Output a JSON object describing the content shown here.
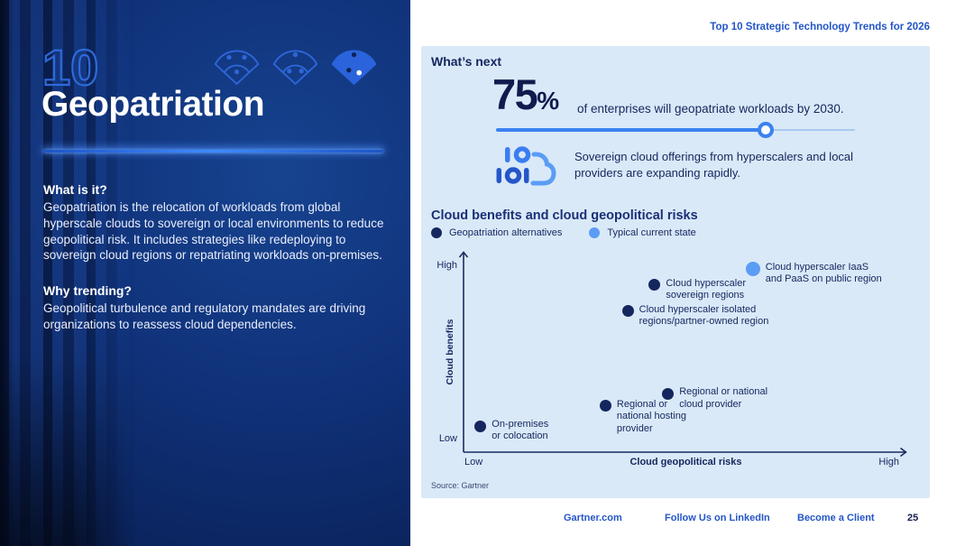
{
  "document": {
    "header_label": "Top 10 Strategic Technology Trends for 2026"
  },
  "left_panel": {
    "number": "10",
    "icons": [
      "fan-dots-icon-outline",
      "fan-dots-icon-outline",
      "fan-dots-icon-filled"
    ],
    "title": "Geopatriation",
    "what_heading": "What is it?",
    "what_text": "Geopatriation is the relocation of workloads from global hyperscale clouds to sovereign or local environments to reduce geopolitical risk. It includes strategies like redeploying to sovereign cloud regions or repatriating workloads on-premises.",
    "why_heading": "Why trending?",
    "why_text": "Geopolitical turbulence and regulatory mandates are driving organizations to reassess cloud dependencies."
  },
  "whats_next": {
    "heading": "What’s next",
    "stat_value": "75",
    "stat_unit": "%",
    "stat_text": "of enterprises will geopatriate workloads by 2030.",
    "slider_percent": 75,
    "callout_icon": "binary-cloud-icon",
    "callout_text": "Sovereign cloud offerings from hyperscalers and local providers are expanding rapidly."
  },
  "chart_data": {
    "type": "scatter",
    "title": "Cloud benefits and cloud geopolitical risks",
    "xlabel": "Cloud geopolitical risks",
    "ylabel": "Cloud benefits",
    "x_axis_ticks": [
      "Low",
      "High"
    ],
    "y_axis_ticks": [
      "Low",
      "High"
    ],
    "x_range": [
      0,
      1
    ],
    "y_range": [
      0,
      1
    ],
    "grid": false,
    "legend_position": "top-left",
    "legend": [
      {
        "name": "Geopatriation alternatives",
        "color": "#15265e"
      },
      {
        "name": "Typical current state",
        "color": "#5b9cf5"
      }
    ],
    "points": [
      {
        "id": "onprem",
        "label": "On-premises or colocation",
        "label_lines": [
          "On-premises",
          "or colocation"
        ],
        "series": "Geopatriation alternatives",
        "x": 0.04,
        "y": 0.13
      },
      {
        "id": "hosting",
        "label": "Regional or national hosting provider",
        "label_lines": [
          "Regional or",
          "national hosting",
          "provider"
        ],
        "series": "Geopatriation alternatives",
        "x": 0.32,
        "y": 0.23
      },
      {
        "id": "regional-cloud",
        "label": "Regional or national cloud provider",
        "label_lines": [
          "Regional or national",
          "cloud provider"
        ],
        "series": "Geopatriation alternatives",
        "x": 0.46,
        "y": 0.29
      },
      {
        "id": "isolated",
        "label": "Cloud hyperscaler isolated regions/partner-owned region",
        "label_lines": [
          "Cloud hyperscaler isolated",
          "regions/partner-owned region"
        ],
        "series": "Geopatriation alternatives",
        "x": 0.37,
        "y": 0.7
      },
      {
        "id": "sovereign",
        "label": "Cloud hyperscaler sovereign regions",
        "label_lines": [
          "Cloud hyperscaler",
          "sovereign regions"
        ],
        "series": "Geopatriation alternatives",
        "x": 0.43,
        "y": 0.83
      },
      {
        "id": "iaas-public",
        "label": "Cloud hyperscaler IaaS and PaaS on public region",
        "label_lines": [
          "Cloud hyperscaler IaaS",
          "and PaaS on public region"
        ],
        "series": "Typical current state",
        "x": 0.65,
        "y": 0.91
      }
    ],
    "source": "Source: Gartner"
  },
  "footer": {
    "links": [
      "Gartner.com",
      "Follow Us on LinkedIn",
      "Become a Client"
    ],
    "page_number": "25"
  },
  "colors": {
    "panel_navy": "#0d2a68",
    "accent_blue": "#3b82f0",
    "dark_navy": "#15265e",
    "light_blue": "#5b9cf5",
    "card_bg": "#d9e9f8",
    "link_blue": "#2456c7",
    "divider_glow": "#3f8bff"
  }
}
